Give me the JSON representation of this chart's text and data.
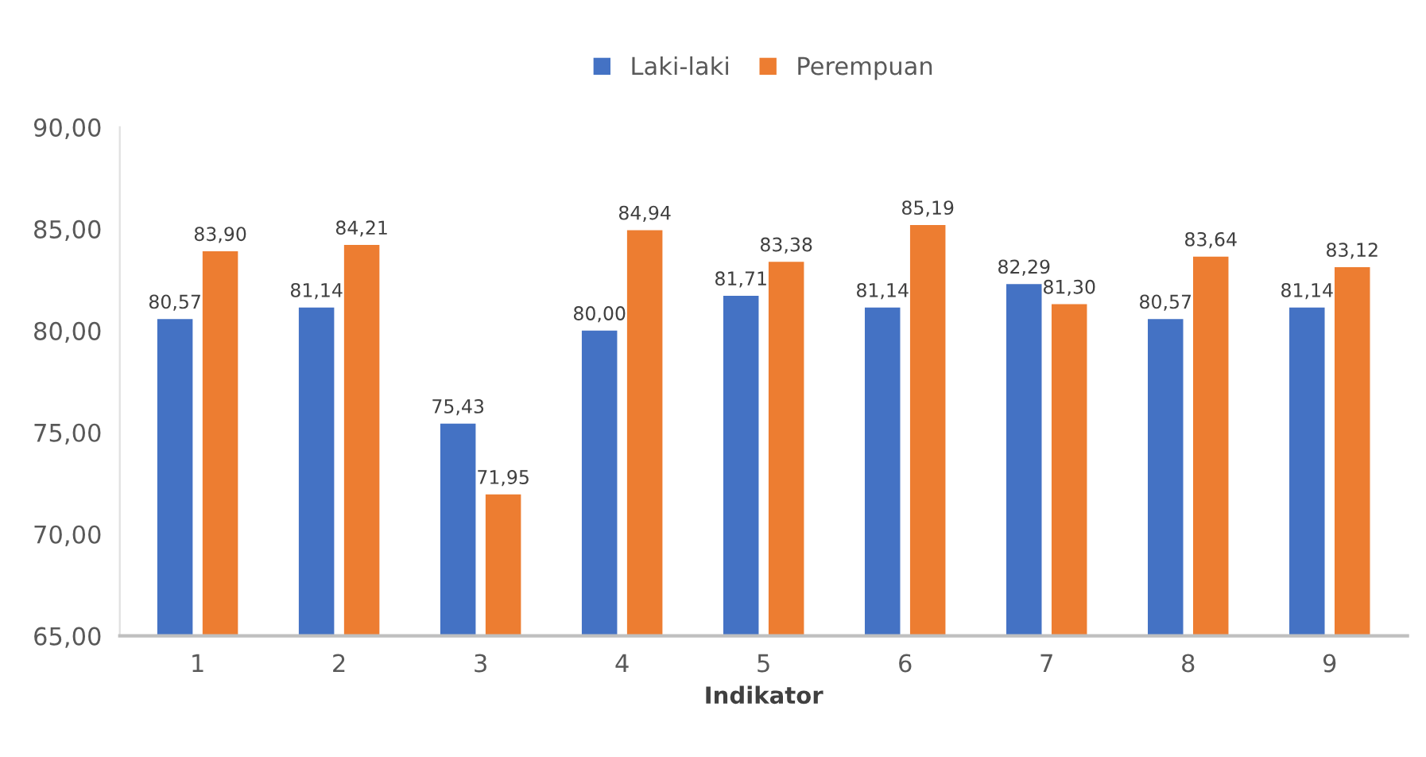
{
  "chart_data": {
    "type": "bar",
    "xlabel": "Indikator",
    "categories": [
      "1",
      "2",
      "3",
      "4",
      "5",
      "6",
      "7",
      "8",
      "9"
    ],
    "series": [
      {
        "name": "Laki-laki",
        "color": "#4472c4",
        "values": [
          80.57,
          81.14,
          75.43,
          80.0,
          81.71,
          81.14,
          82.29,
          80.57,
          81.14
        ],
        "value_labels": [
          "80,57",
          "81,14",
          "75,43",
          "80,00",
          "81,71",
          "81,14",
          "82,29",
          "80,57",
          "81,14"
        ]
      },
      {
        "name": "Perempuan",
        "color": "#ed7d31",
        "values": [
          83.9,
          84.21,
          71.95,
          84.94,
          83.38,
          85.19,
          81.3,
          83.64,
          83.12
        ],
        "value_labels": [
          "83,90",
          "84,21",
          "71,95",
          "84,94",
          "83,38",
          "85,19",
          "81,30",
          "83,64",
          "83,12"
        ]
      }
    ],
    "ylim": [
      65,
      90
    ],
    "yticks": [
      {
        "value": 65,
        "label": "65,00"
      },
      {
        "value": 70,
        "label": "70,00"
      },
      {
        "value": 75,
        "label": "75,00"
      },
      {
        "value": 80,
        "label": "80,00"
      },
      {
        "value": 85,
        "label": "85,00"
      },
      {
        "value": 90,
        "label": "90,00"
      }
    ],
    "grid": false,
    "legend": "top"
  }
}
